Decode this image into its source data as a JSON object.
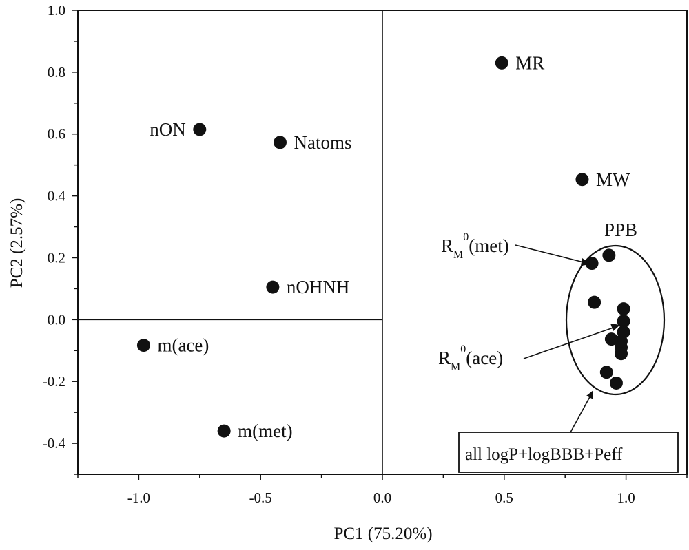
{
  "chart_data": {
    "type": "scatter",
    "xlabel": "PC1 (75.20%)",
    "ylabel": "PC2 (2.57%)",
    "xlim": [
      -1.25,
      1.25
    ],
    "ylim": [
      -0.5,
      1.0
    ],
    "xticks": [
      -1.0,
      -0.5,
      0.0,
      0.5,
      1.0
    ],
    "xtick_labels": [
      "-1.0",
      "-0.5",
      "0.0",
      "0.5",
      "1.0"
    ],
    "yticks": [
      -0.4,
      -0.2,
      0.0,
      0.2,
      0.4,
      0.6,
      0.8,
      1.0
    ],
    "ytick_labels": [
      "-0.4",
      "-0.2",
      "0.0",
      "0.2",
      "0.4",
      "0.6",
      "0.8",
      "1.0"
    ],
    "grid": false,
    "reference_lines": {
      "x": 0.0,
      "y": 0.0
    },
    "points": [
      {
        "label": "MR",
        "x": 0.49,
        "y": 0.83
      },
      {
        "label": "nON",
        "x": -0.75,
        "y": 0.615
      },
      {
        "label": "Natoms",
        "x": -0.42,
        "y": 0.573
      },
      {
        "label": "MW",
        "x": 0.82,
        "y": 0.453
      },
      {
        "label": "nOHNH",
        "x": -0.45,
        "y": 0.105
      },
      {
        "label": "m(ace)",
        "x": -0.98,
        "y": -0.083
      },
      {
        "label": "m(met)",
        "x": -0.65,
        "y": -0.36
      },
      {
        "label": "PPB",
        "x": 0.93,
        "y": 0.208
      },
      {
        "label": "RM0(met)",
        "x": 0.86,
        "y": 0.182
      },
      {
        "label": "",
        "x": 0.87,
        "y": 0.056
      },
      {
        "label": "",
        "x": 0.99,
        "y": 0.035
      },
      {
        "label": "",
        "x": 0.99,
        "y": -0.005
      },
      {
        "label": "",
        "x": 0.99,
        "y": -0.04
      },
      {
        "label": "",
        "x": 0.98,
        "y": -0.07
      },
      {
        "label": "",
        "x": 0.94,
        "y": -0.063
      },
      {
        "label": "",
        "x": 0.98,
        "y": -0.09
      },
      {
        "label": "",
        "x": 0.98,
        "y": -0.11
      },
      {
        "label": "",
        "x": 0.92,
        "y": -0.17
      },
      {
        "label": "",
        "x": 0.96,
        "y": -0.205
      }
    ],
    "annotations": {
      "ppb": "PPB",
      "rm_met": {
        "main": "R",
        "sub": "M",
        "sup": "0",
        "rest": "(met)"
      },
      "rm_ace": {
        "main": "R",
        "sub": "M",
        "sup": "0",
        "rest": "(ace)"
      },
      "group_box": "all logP+logBBB+Peff"
    }
  }
}
